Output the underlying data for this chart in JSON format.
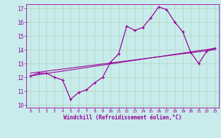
{
  "hours": [
    0,
    1,
    2,
    3,
    4,
    5,
    6,
    7,
    8,
    9,
    10,
    11,
    12,
    13,
    14,
    15,
    16,
    17,
    18,
    19,
    20,
    21,
    22,
    23
  ],
  "windchill": [
    12.1,
    12.3,
    12.3,
    12.0,
    11.8,
    10.4,
    10.9,
    11.1,
    11.6,
    12.0,
    13.1,
    13.7,
    15.7,
    15.4,
    15.6,
    16.3,
    17.1,
    16.9,
    16.0,
    15.3,
    13.8,
    13.0,
    13.9,
    14.1
  ],
  "trend1": [
    12.1,
    14.1
  ],
  "trend1_x": [
    0,
    23
  ],
  "trend2": [
    12.3,
    14.0
  ],
  "trend2_x": [
    0,
    23
  ],
  "ylim": [
    9.8,
    17.3
  ],
  "xlim": [
    -0.5,
    23.5
  ],
  "bg_color": "#c8ecec",
  "line_color": "#990099",
  "grid_color": "#aaccaa",
  "xlabel": "Windchill (Refroidissement éolien,°C)",
  "yticks": [
    10,
    11,
    12,
    13,
    14,
    15,
    16,
    17
  ],
  "xticks": [
    0,
    1,
    2,
    3,
    4,
    5,
    6,
    7,
    8,
    9,
    10,
    11,
    12,
    13,
    14,
    15,
    16,
    17,
    18,
    19,
    20,
    21,
    22,
    23
  ]
}
